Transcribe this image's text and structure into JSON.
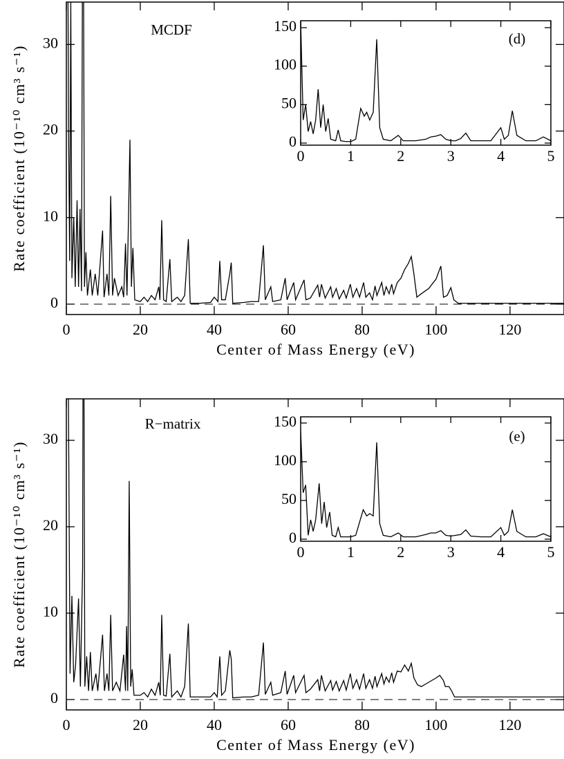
{
  "chart_data": [
    {
      "type": "line",
      "annotation": "MCDF",
      "xlabel": "Center of Mass Energy (eV)",
      "ylabel": "Rate coefficient (10⁻¹⁰ cm³ s⁻¹)",
      "color": "#000000",
      "zero_line": true,
      "xlim": [
        0,
        134.6
      ],
      "ylim": [
        -1.2,
        34.9
      ],
      "xticks": [
        0,
        20,
        40,
        60,
        80,
        100,
        120
      ],
      "yticks": [
        0,
        10,
        20,
        30
      ],
      "x": [
        0.2,
        0.6,
        0.9,
        1.2,
        1.5,
        2,
        2.4,
        2.9,
        3.3,
        3.7,
        4.1,
        4.5,
        4.9,
        5.3,
        5.7,
        6.5,
        7,
        7.8,
        8.5,
        9.8,
        10.2,
        11,
        11.5,
        12,
        12.5,
        13,
        14,
        15,
        15.5,
        16,
        16.4,
        16.8,
        17.2,
        17.6,
        18,
        18.5,
        20,
        21,
        22,
        23,
        24,
        25,
        25.3,
        25.8,
        26.3,
        27,
        28,
        28.5,
        30,
        31,
        32,
        33,
        33.5,
        36,
        39,
        40,
        41,
        41.5,
        42,
        43,
        44.2,
        44.6,
        45,
        48,
        50,
        52,
        53.3,
        53.8,
        55.3,
        55.8,
        58,
        59.2,
        59.7,
        61.5,
        62,
        64.3,
        64.8,
        66,
        68,
        68.5,
        69,
        70,
        71.5,
        72,
        73,
        73.8,
        75,
        75.7,
        76.8,
        77.5,
        78.5,
        79.3,
        80.4,
        81,
        82,
        82.8,
        83.5,
        84,
        85.3,
        85.9,
        86.5,
        87.3,
        88,
        88.5,
        89.5,
        90.5,
        91.5,
        92.5,
        93.3,
        94,
        94.8,
        96,
        98,
        100,
        101.3,
        102,
        103,
        104,
        104.8,
        106,
        115,
        130,
        134.6
      ],
      "values": [
        60,
        20,
        5,
        35,
        3,
        10,
        2,
        12,
        2,
        11,
        1.5,
        60,
        2,
        6,
        1,
        4,
        1,
        3.5,
        1,
        8.5,
        0.8,
        3.5,
        1,
        12.5,
        1,
        3,
        1,
        2,
        0.8,
        7,
        1,
        9.8,
        19,
        2,
        6.5,
        0.5,
        0.3,
        0.8,
        0.3,
        1,
        0.5,
        2,
        0.5,
        9.7,
        0.5,
        0.3,
        5.2,
        0.3,
        0.8,
        0.3,
        1,
        7.5,
        0.1,
        0.1,
        0.2,
        0.8,
        0.3,
        5,
        0.5,
        0.5,
        3.5,
        4.8,
        0.1,
        0.2,
        0.3,
        0.3,
        6.8,
        0.5,
        2,
        0.3,
        0.5,
        3,
        0.5,
        2.5,
        0.5,
        2.8,
        0.5,
        0.7,
        2.2,
        0.8,
        2.3,
        0.7,
        2,
        0.8,
        1.8,
        0.6,
        1.6,
        0.7,
        2.3,
        0.8,
        1.8,
        0.8,
        2.5,
        0.8,
        1.3,
        0.5,
        2.1,
        1,
        2.5,
        1,
        2,
        1.2,
        2.3,
        1.2,
        2.5,
        3,
        4,
        4.7,
        5.5,
        3.5,
        0.8,
        1.2,
        1.8,
        2.9,
        4.4,
        0.8,
        1,
        1.9,
        0.5,
        0.1,
        0.1,
        0.1,
        0.1
      ]
    },
    {
      "type": "line",
      "annotation": "(d)",
      "color": "#000000",
      "xlim": [
        0,
        5
      ],
      "ylim": [
        -2.7,
        159
      ],
      "xticks": [
        0,
        1,
        2,
        3,
        4,
        5
      ],
      "yticks": [
        0,
        50,
        100,
        150
      ],
      "x": [
        0,
        0.05,
        0.1,
        0.15,
        0.2,
        0.25,
        0.3,
        0.35,
        0.4,
        0.45,
        0.5,
        0.55,
        0.6,
        0.7,
        0.75,
        0.8,
        0.9,
        1.0,
        1.1,
        1.2,
        1.27,
        1.32,
        1.38,
        1.45,
        1.52,
        1.58,
        1.65,
        1.8,
        1.95,
        2.05,
        2.3,
        2.5,
        2.6,
        2.7,
        2.8,
        2.9,
        3.0,
        3.1,
        3.2,
        3.3,
        3.4,
        3.6,
        3.8,
        4.0,
        4.07,
        4.15,
        4.23,
        4.32,
        4.5,
        4.7,
        4.85,
        5
      ],
      "values": [
        160,
        30,
        50,
        15,
        28,
        12,
        30,
        70,
        20,
        50,
        15,
        32,
        5,
        3,
        17,
        3,
        2,
        2,
        5,
        45,
        35,
        40,
        30,
        40,
        135,
        20,
        5,
        3,
        10,
        3,
        3,
        5,
        8,
        9,
        11,
        5,
        3,
        3,
        6,
        13,
        3,
        3,
        3,
        20,
        5,
        10,
        42,
        10,
        3,
        3,
        8,
        3
      ]
    },
    {
      "type": "line",
      "annotation": "R−matrix",
      "xlabel": "Center of Mass Energy (eV)",
      "ylabel": "Rate coefficient (10⁻¹⁰ cm³ s⁻¹)",
      "color": "#000000",
      "zero_line": true,
      "xlim": [
        0,
        134.6
      ],
      "ylim": [
        -1.2,
        34.8
      ],
      "xticks": [
        0,
        20,
        40,
        60,
        80,
        100,
        120
      ],
      "yticks": [
        0,
        10,
        20,
        30
      ],
      "x": [
        0.2,
        0.7,
        1,
        1.5,
        2,
        2.5,
        3.3,
        3.8,
        4.4,
        4.6,
        5,
        5.5,
        6,
        6.5,
        7,
        8,
        8.5,
        9.8,
        10.3,
        11,
        11.5,
        12,
        12.5,
        13.5,
        14.5,
        15.5,
        16,
        16.3,
        16.6,
        17,
        17.4,
        17.8,
        18.3,
        20,
        21,
        22,
        23,
        24,
        25,
        25.4,
        25.8,
        26.3,
        27,
        28,
        28.5,
        30,
        31,
        32,
        33,
        33.5,
        36,
        39,
        40,
        40.8,
        41.5,
        42,
        43,
        44.2,
        44.6,
        45,
        48,
        50,
        52,
        53.3,
        53.8,
        55.3,
        55.8,
        58,
        59.2,
        59.7,
        61.5,
        62,
        64.3,
        64.8,
        66,
        68,
        68.5,
        69,
        70,
        71.5,
        72,
        73,
        73.8,
        75,
        75.7,
        76.8,
        77.5,
        78.5,
        79.3,
        80.4,
        81,
        82,
        82.8,
        83.5,
        84,
        85.3,
        85.9,
        86.5,
        87.3,
        88,
        88.5,
        89.5,
        90.5,
        91.5,
        92.5,
        93.3,
        94,
        95,
        96,
        98,
        100,
        101,
        102,
        102.5,
        103.5,
        104.2,
        105,
        108,
        120,
        134.6
      ],
      "values": [
        60,
        25,
        3,
        12,
        2,
        4,
        11.7,
        1.5,
        15.3,
        60,
        1.5,
        5,
        1,
        5.5,
        1,
        3,
        1,
        7.5,
        1,
        3,
        1,
        9.8,
        1,
        2,
        1,
        5.2,
        1,
        8.5,
        1,
        25.3,
        1.5,
        3.5,
        0.5,
        0.5,
        0.8,
        0.3,
        1.2,
        0.5,
        2,
        0.5,
        9.8,
        0.5,
        0.4,
        5.3,
        0.3,
        1,
        0.3,
        1.5,
        8.8,
        0.3,
        0.3,
        0.3,
        0.8,
        0.3,
        5,
        0.5,
        1,
        5.7,
        4.7,
        0.2,
        0.3,
        0.3,
        0.5,
        6.6,
        0.6,
        2,
        0.5,
        0.8,
        3.3,
        0.6,
        2.8,
        0.8,
        2.8,
        0.8,
        1.2,
        2.3,
        1,
        2.8,
        1,
        2.2,
        1.1,
        2.1,
        1,
        2.2,
        1.1,
        3,
        1.3,
        2.3,
        1.2,
        3,
        1.3,
        2.3,
        1.3,
        2.7,
        1.5,
        3,
        1.8,
        2.6,
        2,
        3.1,
        2,
        3.3,
        3.2,
        4,
        3.3,
        4.2,
        2.5,
        1.7,
        1.5,
        2,
        2.5,
        2.8,
        2.2,
        1.5,
        1.5,
        1,
        0.3,
        0.3,
        0.3,
        0.3
      ]
    },
    {
      "type": "line",
      "annotation": "(e)",
      "color": "#000000",
      "xlim": [
        0,
        5
      ],
      "ylim": [
        -2.7,
        158
      ],
      "xticks": [
        0,
        1,
        2,
        3,
        4,
        5
      ],
      "yticks": [
        0,
        50,
        100,
        150
      ],
      "x": [
        0,
        0.05,
        0.1,
        0.15,
        0.2,
        0.25,
        0.3,
        0.37,
        0.42,
        0.47,
        0.52,
        0.58,
        0.63,
        0.7,
        0.75,
        0.8,
        0.9,
        1.0,
        1.1,
        1.25,
        1.32,
        1.38,
        1.45,
        1.52,
        1.58,
        1.65,
        1.8,
        1.95,
        2.05,
        2.3,
        2.5,
        2.6,
        2.7,
        2.8,
        2.9,
        3.0,
        3.1,
        3.2,
        3.3,
        3.4,
        3.6,
        3.8,
        4.0,
        4.07,
        4.15,
        4.23,
        4.32,
        4.5,
        4.7,
        4.85,
        5
      ],
      "values": [
        140,
        60,
        70,
        5,
        25,
        10,
        25,
        72,
        20,
        48,
        15,
        35,
        5,
        3,
        15,
        3,
        3,
        3,
        5,
        38,
        30,
        33,
        30,
        125,
        20,
        5,
        3,
        8,
        3,
        3,
        6,
        8,
        8,
        11,
        5,
        4,
        5,
        6,
        12,
        4,
        3,
        3,
        15,
        5,
        10,
        38,
        10,
        3,
        3,
        7,
        3
      ]
    }
  ]
}
